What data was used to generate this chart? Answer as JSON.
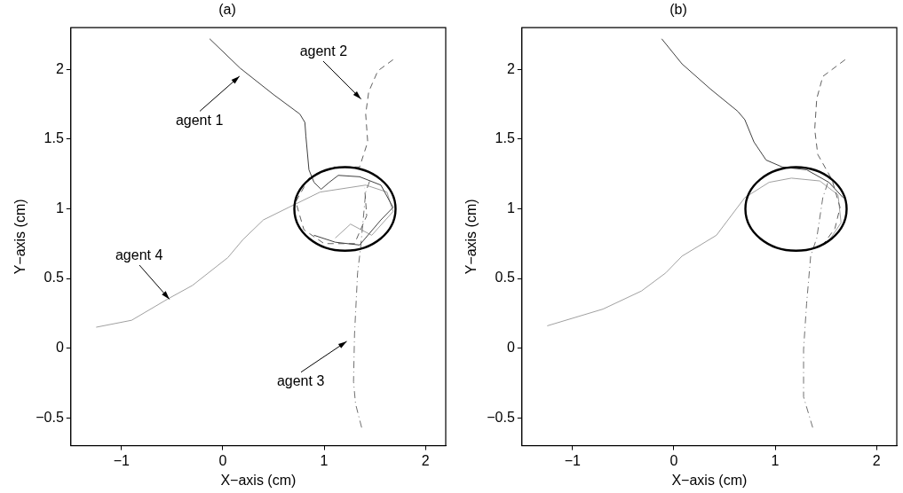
{
  "chart_data": [
    {
      "type": "line",
      "title": "(a)",
      "xlabel": "X−axis (cm)",
      "ylabel": "Y−axis (cm)",
      "xlim": [
        -1.5,
        2.2
      ],
      "ylim": [
        -0.7,
        2.3
      ],
      "xticks": [
        -1,
        0,
        1,
        2
      ],
      "yticks": [
        -0.5,
        0,
        0.5,
        1,
        1.5,
        2
      ],
      "series": [
        {
          "color": "#404040",
          "x": [
            -0.13,
            0.17,
            0.5,
            0.76,
            0.81,
            0.82,
            0.85,
            0.9,
            0.97,
            1.05,
            1.14,
            1.35,
            1.56,
            1.68,
            1.56,
            1.35,
            1.11,
            0.9
          ],
          "values": [
            2.22,
            2.01,
            1.82,
            1.68,
            1.62,
            1.52,
            1.28,
            1.19,
            1.14,
            1.19,
            1.24,
            1.23,
            1.17,
            1.01,
            0.92,
            0.74,
            0.76,
            0.81
          ]
        },
        {
          "color": "#606060",
          "line_style": "dashed",
          "x": [
            1.68,
            1.53,
            1.44,
            1.41,
            1.43,
            1.35,
            1.1,
            0.85,
            0.72,
            0.8,
            1.0,
            1.3,
            1.42,
            1.4
          ],
          "values": [
            2.07,
            1.99,
            1.84,
            1.68,
            1.48,
            1.3,
            1.3,
            1.22,
            1.05,
            0.85,
            0.75,
            0.75,
            0.95,
            1.15
          ]
        },
        {
          "color": "#707070",
          "line_style": "dashdot",
          "x": [
            1.37,
            1.31,
            1.29,
            1.3,
            1.33,
            1.36,
            1.41,
            1.45
          ],
          "values": [
            -0.57,
            -0.4,
            -0.24,
            0.1,
            0.54,
            0.72,
            1.12,
            1.2
          ]
        },
        {
          "color": "#a0a0a0",
          "x": [
            -1.25,
            -0.9,
            -0.55,
            -0.3,
            0.05,
            0.2,
            0.4,
            0.65,
            0.96,
            1.41,
            1.62,
            1.68,
            1.47,
            1.26,
            1.11
          ],
          "values": [
            0.15,
            0.2,
            0.35,
            0.45,
            0.65,
            0.78,
            0.92,
            1.01,
            1.12,
            1.17,
            1.12,
            0.98,
            0.81,
            0.89,
            0.79
          ]
        }
      ],
      "annotations": [
        "agent 1",
        "agent 2",
        "agent 3",
        "agent 4"
      ]
    },
    {
      "type": "line",
      "title": "(b)",
      "xlabel": "X−axis (cm)",
      "ylabel": "Y−axis (cm)",
      "xlim": [
        -1.5,
        2.2
      ],
      "ylim": [
        -0.7,
        2.3
      ],
      "xticks": [
        -1,
        0,
        1,
        2
      ],
      "yticks": [
        -0.5,
        0,
        0.5,
        1,
        1.5,
        2
      ],
      "series": [
        {
          "color": "#404040",
          "x": [
            -0.12,
            0.08,
            0.36,
            0.63,
            0.7,
            0.79,
            0.91,
            1.07,
            1.31,
            1.53,
            1.67
          ],
          "values": [
            2.22,
            2.04,
            1.86,
            1.7,
            1.64,
            1.48,
            1.35,
            1.3,
            1.28,
            1.19,
            1.08
          ]
        },
        {
          "color": "#606060",
          "line_style": "dashed",
          "x": [
            1.69,
            1.47,
            1.41,
            1.39,
            1.42,
            1.56,
            1.64,
            1.59,
            1.47
          ],
          "values": [
            2.07,
            1.95,
            1.79,
            1.57,
            1.39,
            1.21,
            1.01,
            0.86,
            0.74
          ]
        },
        {
          "color": "#707070",
          "line_style": "dashdot",
          "x": [
            1.37,
            1.28,
            1.28,
            1.31,
            1.35,
            1.41,
            1.47,
            1.53
          ],
          "values": [
            -0.57,
            -0.35,
            -0.01,
            0.32,
            0.66,
            0.79,
            1.08,
            1.21
          ]
        },
        {
          "color": "#a0a0a0",
          "x": [
            -1.25,
            -0.7,
            -0.32,
            -0.08,
            0.08,
            0.42,
            0.7,
            0.94,
            1.16,
            1.44,
            1.62,
            1.65,
            1.53
          ],
          "values": [
            0.16,
            0.28,
            0.41,
            0.54,
            0.66,
            0.81,
            1.08,
            1.19,
            1.22,
            1.2,
            1.1,
            0.9,
            0.77
          ]
        }
      ]
    }
  ]
}
